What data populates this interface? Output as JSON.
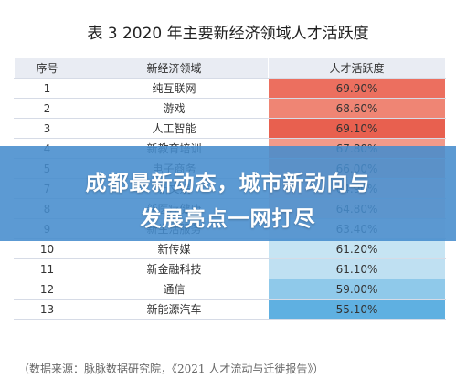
{
  "title": "表 3  2020 年主要新经济领域人才活跃度",
  "table": {
    "headers": [
      "序号",
      "新经济领域",
      "人才活跃度"
    ],
    "rows": [
      {
        "idx": "1",
        "name": "纯互联网",
        "value": "69.90%",
        "color": "#ec6f5f"
      },
      {
        "idx": "2",
        "name": "游戏",
        "value": "68.60%",
        "color": "#ef8574"
      },
      {
        "idx": "3",
        "name": "人工智能",
        "value": "69.10%",
        "color": "#e8604f"
      },
      {
        "idx": "4",
        "name": "新教育培训",
        "value": "67.80%",
        "color": "#f29a8a"
      },
      {
        "idx": "5",
        "name": "电子商务",
        "value": "66.00%",
        "color": "#f5b0a3"
      },
      {
        "idx": "7",
        "name": "新文娱",
        "value": "64.90%",
        "color": "#f8cfc7"
      },
      {
        "idx": "8",
        "name": "新医疗健康",
        "value": "64.80%",
        "color": "#f8d6cf"
      },
      {
        "idx": "9",
        "name": "新生活服务",
        "value": "63.40%",
        "color": "#f4efee"
      },
      {
        "idx": "10",
        "name": "新传媒",
        "value": "61.20%",
        "color": "#c6e4f3"
      },
      {
        "idx": "11",
        "name": "新金融科技",
        "value": "61.10%",
        "color": "#bfe0f2"
      },
      {
        "idx": "12",
        "name": "通信",
        "value": "59.00%",
        "color": "#8fc9ea"
      },
      {
        "idx": "13",
        "name": "新能源汽车",
        "value": "55.10%",
        "color": "#5fb0e1"
      }
    ]
  },
  "overlay": {
    "line1": "成都最新动态，城市新动向与",
    "line2": "发展亮点一网打尽"
  },
  "source": "（数据来源：脉脉数据研究院，《2021 人才流动与迁徙报告》）"
}
